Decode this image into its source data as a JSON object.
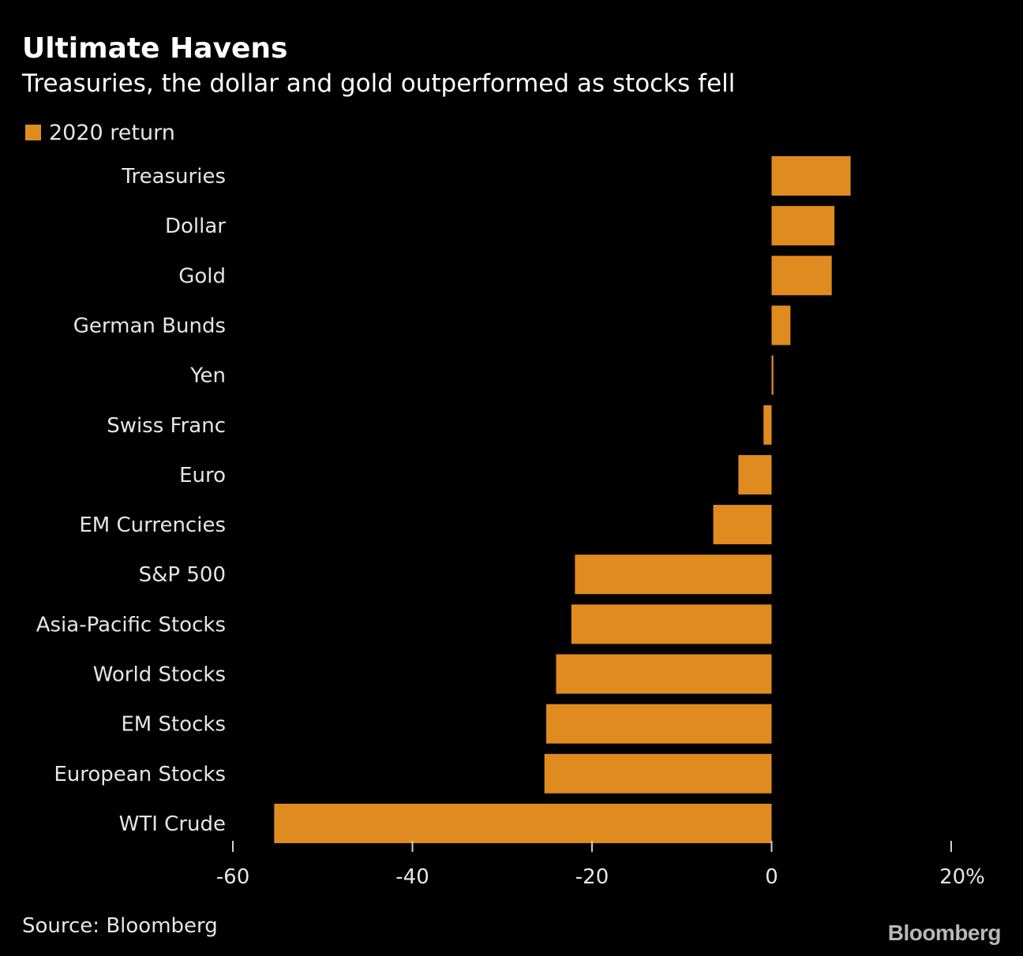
{
  "chart_data": {
    "type": "bar",
    "orientation": "horizontal",
    "title": "Ultimate Havens",
    "subtitle": "Treasuries, the dollar and gold outperformed as stocks fell",
    "categories": [
      "Treasuries",
      "Dollar",
      "Gold",
      "German Bunds",
      "Yen",
      "Swiss Franc",
      "Euro",
      "EM Currencies",
      "S&P 500",
      "Asia-Pacific Stocks",
      "World Stocks",
      "EM Stocks",
      "European Stocks",
      "WTI Crude"
    ],
    "series": [
      {
        "name": "2020 return",
        "color": "#e08b1f",
        "values": [
          8.8,
          7.0,
          6.7,
          2.1,
          0.2,
          -0.9,
          -3.7,
          -6.5,
          -21.9,
          -22.3,
          -24.0,
          -25.1,
          -25.3,
          -55.4
        ]
      }
    ],
    "xlim": [
      -60,
      20
    ],
    "x_ticks": [
      "-60",
      "-40",
      "-20",
      "0",
      "20%"
    ],
    "x_tick_values": [
      -60,
      -40,
      -20,
      0,
      20
    ],
    "grid": false,
    "legend_position": "top-left"
  },
  "footer": {
    "source": "Source: Bloomberg",
    "brand": "Bloomberg"
  }
}
